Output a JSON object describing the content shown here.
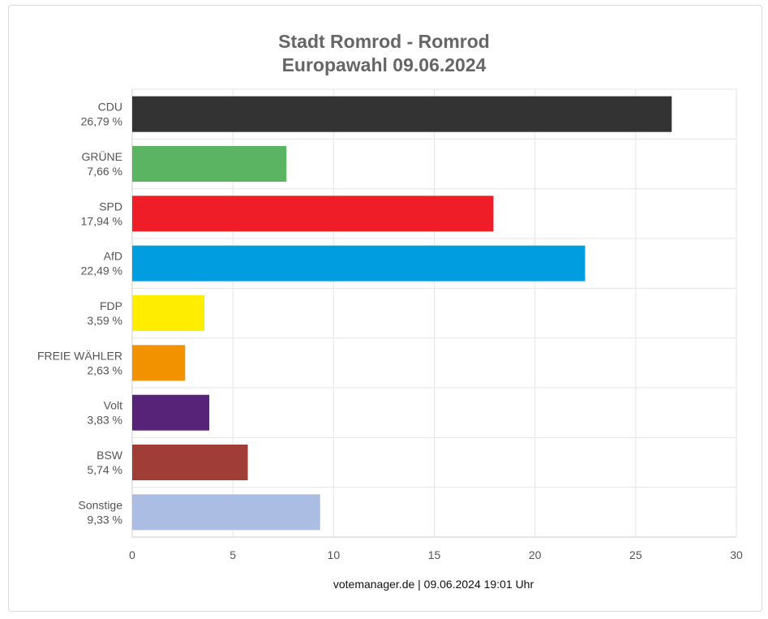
{
  "title": {
    "line1": "Stadt Romrod - Romrod",
    "line2": "Europawahl 09.06.2024"
  },
  "footer": "votemanager.de | 09.06.2024 19:01 Uhr",
  "chart_data": {
    "type": "bar",
    "orientation": "horizontal",
    "title": "Stadt Romrod - Romrod Europawahl 09.06.2024",
    "categories": [
      "CDU",
      "GRÜNE",
      "SPD",
      "AfD",
      "FDP",
      "FREIE WÄHLER",
      "Volt",
      "BSW",
      "Sonstige"
    ],
    "value_labels": [
      "26,79 %",
      "7,66 %",
      "17,94 %",
      "22,49 %",
      "3,59 %",
      "2,63 %",
      "3,83 %",
      "5,74 %",
      "9,33 %"
    ],
    "values": [
      26.79,
      7.66,
      17.94,
      22.49,
      3.59,
      2.63,
      3.83,
      5.74,
      9.33
    ],
    "colors": [
      "#333333",
      "#5ab462",
      "#ee1d28",
      "#009ee0",
      "#ffed00",
      "#f39200",
      "#562379",
      "#9f3d36",
      "#abbde3"
    ],
    "xlim": [
      0,
      30
    ],
    "xticks": [
      0,
      5,
      10,
      15,
      20,
      25,
      30
    ],
    "xlabel": "",
    "ylabel": "",
    "grid": true,
    "legend": "none"
  }
}
